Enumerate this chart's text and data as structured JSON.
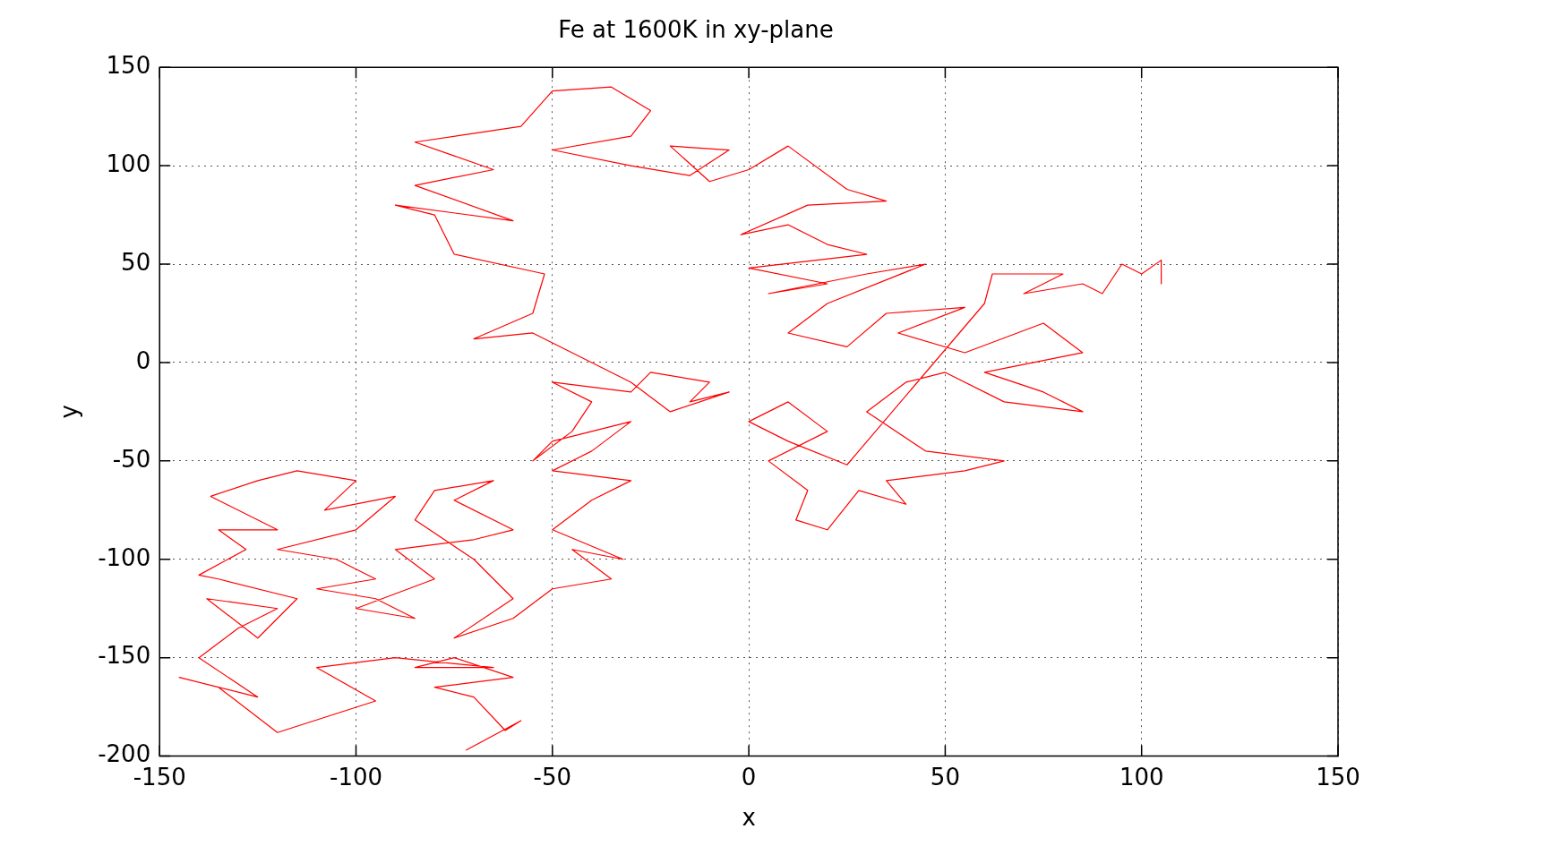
{
  "chart_data": {
    "type": "line",
    "title": "Fe at 1600K in xy-plane",
    "xlabel": "x",
    "ylabel": "y",
    "xlim": [
      -150,
      150
    ],
    "xticks": [
      -150,
      -100,
      -50,
      0,
      50,
      100,
      150
    ],
    "ylim": [
      -200,
      150
    ],
    "yticks": [
      -200,
      -150,
      -100,
      -50,
      0,
      50,
      100,
      150
    ],
    "grid": true,
    "marker": "none",
    "line_style": "solid",
    "series": [
      {
        "color": "#ff0000",
        "x": [
          -72,
          -58,
          -62,
          -70,
          -80,
          -60,
          -75,
          -85,
          -65,
          -90,
          -110,
          -95,
          -120,
          -135,
          -145,
          -125,
          -140,
          -130,
          -120,
          -138,
          -125,
          -115,
          -135,
          -140,
          -128,
          -135,
          -120,
          -137,
          -125,
          -115,
          -100,
          -108,
          -90,
          -100,
          -120,
          -105,
          -95,
          -110,
          -95,
          -85,
          -100,
          -80,
          -90,
          -70,
          -60,
          -75,
          -65,
          -80,
          -85,
          -70,
          -60,
          -75,
          -60,
          -50,
          -35,
          -45,
          -32,
          -50,
          -40,
          -30,
          -50,
          -40,
          -30,
          -50,
          -55,
          -45,
          -40,
          -50,
          -30,
          -25,
          -10,
          -15,
          -5,
          -20,
          -30,
          -45,
          -55,
          -70,
          -55,
          -52,
          -75,
          -80,
          -90,
          -60,
          -85,
          -65,
          -75,
          -85,
          -58,
          -50,
          -35,
          -25,
          -30,
          -50,
          -30,
          -15,
          -5,
          -20,
          -10,
          0,
          10,
          25,
          35,
          15,
          -2,
          10,
          20,
          30,
          0,
          20,
          5,
          30,
          45,
          20,
          10,
          25,
          35,
          55,
          38,
          55,
          75,
          85,
          60,
          75,
          85,
          65,
          50,
          40,
          30,
          45,
          65,
          55,
          35,
          40,
          28,
          20,
          12,
          15,
          5,
          20,
          10,
          0,
          10,
          25,
          60,
          62,
          80,
          70,
          85,
          90,
          95,
          100,
          105,
          105
        ],
        "values": [
          -197,
          -182,
          -187,
          -170,
          -165,
          -160,
          -150,
          -155,
          -155,
          -150,
          -155,
          -172,
          -188,
          -165,
          -160,
          -170,
          -150,
          -135,
          -125,
          -120,
          -140,
          -120,
          -110,
          -108,
          -95,
          -85,
          -85,
          -68,
          -60,
          -55,
          -60,
          -75,
          -68,
          -85,
          -95,
          -100,
          -110,
          -115,
          -120,
          -130,
          -125,
          -110,
          -95,
          -90,
          -85,
          -70,
          -60,
          -65,
          -80,
          -100,
          -120,
          -140,
          -130,
          -115,
          -110,
          -95,
          -100,
          -85,
          -70,
          -60,
          -55,
          -45,
          -30,
          -40,
          -50,
          -35,
          -20,
          -10,
          -15,
          -5,
          -10,
          -20,
          -15,
          -25,
          -10,
          5,
          15,
          12,
          25,
          45,
          55,
          75,
          80,
          72,
          90,
          98,
          105,
          112,
          120,
          138,
          140,
          128,
          115,
          108,
          100,
          95,
          108,
          110,
          92,
          98,
          110,
          88,
          82,
          80,
          65,
          70,
          60,
          55,
          48,
          40,
          35,
          45,
          50,
          30,
          15,
          8,
          25,
          28,
          15,
          5,
          20,
          5,
          -5,
          -15,
          -25,
          -20,
          -5,
          -10,
          -25,
          -45,
          -50,
          -55,
          -60,
          -72,
          -65,
          -85,
          -80,
          -65,
          -50,
          -35,
          -20,
          -30,
          -40,
          -52,
          30,
          45,
          45,
          35,
          40,
          35,
          50,
          45,
          52,
          40
        ]
      }
    ]
  }
}
